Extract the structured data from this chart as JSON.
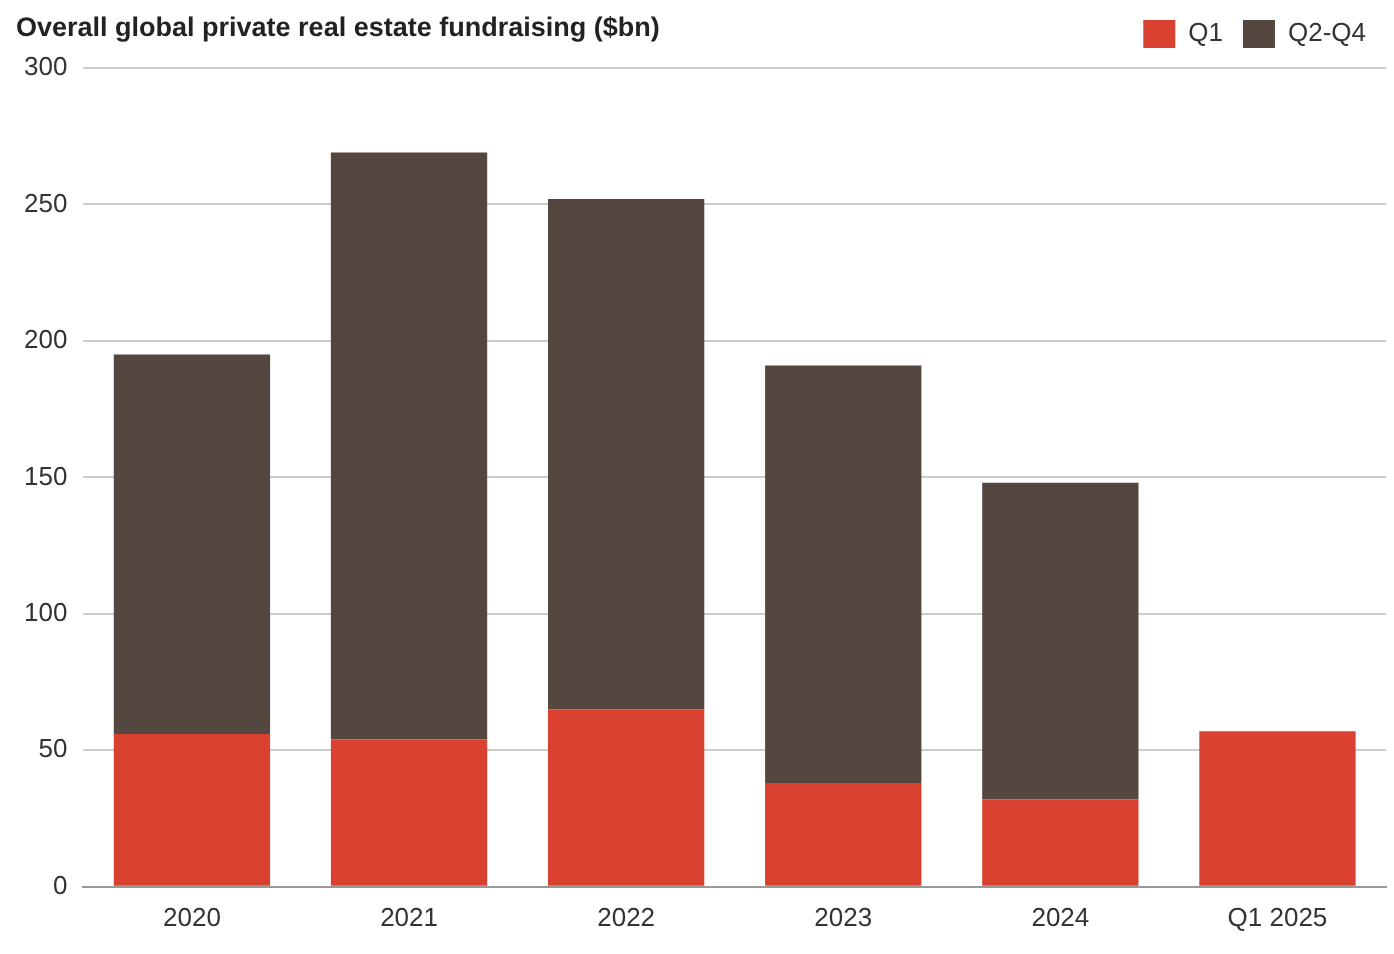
{
  "chart_data": {
    "type": "bar",
    "title": "Overall global private real estate fundraising ($bn)",
    "categories": [
      "2020",
      "2021",
      "2022",
      "2023",
      "2024",
      "Q1 2025"
    ],
    "stacked": true,
    "series": [
      {
        "name": "Q1",
        "color": "#d9402f",
        "values": [
          56,
          54,
          65,
          38,
          32,
          57
        ]
      },
      {
        "name": "Q2-Q4",
        "color": "#544740",
        "values": [
          139,
          215,
          187,
          153,
          116,
          null
        ]
      }
    ],
    "ylim": [
      0,
      300
    ],
    "yticks": [
      0,
      50,
      100,
      150,
      200,
      250,
      300
    ],
    "grid": "y",
    "legend": "top right"
  }
}
